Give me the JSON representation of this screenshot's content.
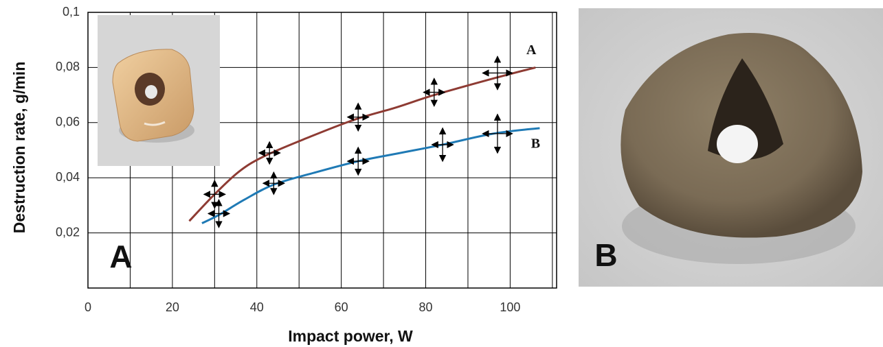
{
  "chart_data": {
    "type": "line",
    "xlabel": "Impact power, W",
    "ylabel": "Destruction rate, g/min",
    "panel_labels": [
      "A",
      "B"
    ],
    "xlim": [
      0,
      111
    ],
    "ylim": [
      0,
      0.1
    ],
    "xticks": [
      0,
      20,
      40,
      60,
      80,
      100
    ],
    "x_minor_ticks": [
      10,
      30,
      50,
      70,
      90,
      110
    ],
    "yticks": [
      {
        "value": 0.02,
        "label": "0,02"
      },
      {
        "value": 0.04,
        "label": "0,04"
      },
      {
        "value": 0.06,
        "label": "0,06"
      },
      {
        "value": 0.08,
        "label": "0,08"
      },
      {
        "value": 0.1,
        "label": "0,1"
      }
    ],
    "grid": true,
    "series": [
      {
        "name": "A",
        "color": "#8e3b33",
        "x": [
          24,
          30,
          36,
          42,
          52,
          63,
          73,
          82,
          96,
          106
        ],
        "values": [
          0.0243,
          0.034,
          0.0425,
          0.048,
          0.0545,
          0.061,
          0.0655,
          0.07,
          0.076,
          0.08
        ],
        "points": {
          "x": [
            30,
            43,
            64,
            82,
            97
          ],
          "y": [
            0.034,
            0.049,
            0.062,
            0.071,
            0.078
          ],
          "xerr": [
            2.5,
            2.5,
            2.5,
            2.5,
            3.5
          ],
          "yerr": [
            0.005,
            0.004,
            0.005,
            0.005,
            0.006
          ]
        }
      },
      {
        "name": "B",
        "color": "#1f7ab5",
        "x": [
          27,
          31,
          37,
          44,
          54,
          64,
          74,
          84,
          96,
          107
        ],
        "values": [
          0.0235,
          0.0265,
          0.032,
          0.0375,
          0.042,
          0.046,
          0.049,
          0.052,
          0.056,
          0.058
        ],
        "points": {
          "x": [
            31,
            44,
            64,
            84,
            97
          ],
          "y": [
            0.027,
            0.038,
            0.046,
            0.052,
            0.056
          ],
          "xerr": [
            2.5,
            2.5,
            2.5,
            2.5,
            3.5
          ],
          "yerr": [
            0.005,
            0.004,
            0.005,
            0.006,
            0.007
          ]
        }
      }
    ]
  }
}
